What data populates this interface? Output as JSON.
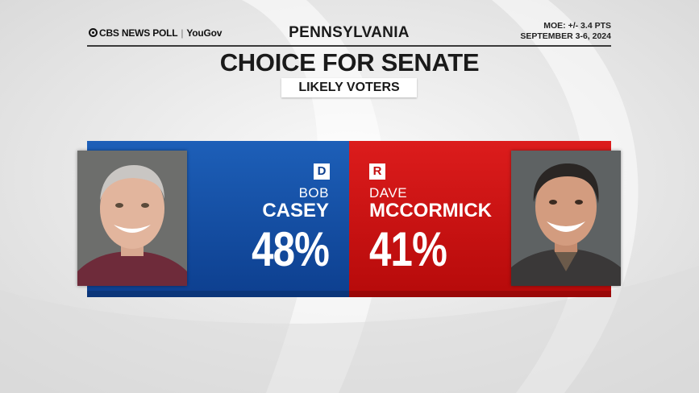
{
  "header": {
    "brand": "CBS NEWS POLL",
    "partner": "YouGov",
    "state": "PENNSYLVANIA",
    "moe": "MOE: +/- 3.4 PTS",
    "dates": "SEPTEMBER 3-6, 2024"
  },
  "title": "CHOICE FOR SENATE",
  "subtitle": "LIKELY VOTERS",
  "candidates": [
    {
      "party": "D",
      "first": "BOB",
      "last": "CASEY",
      "pct": "48%",
      "value": 48,
      "color": "#1d5fb8"
    },
    {
      "party": "R",
      "first": "DAVE",
      "last": "MCCORMICK",
      "pct": "41%",
      "value": 41,
      "color": "#d41515"
    }
  ]
}
